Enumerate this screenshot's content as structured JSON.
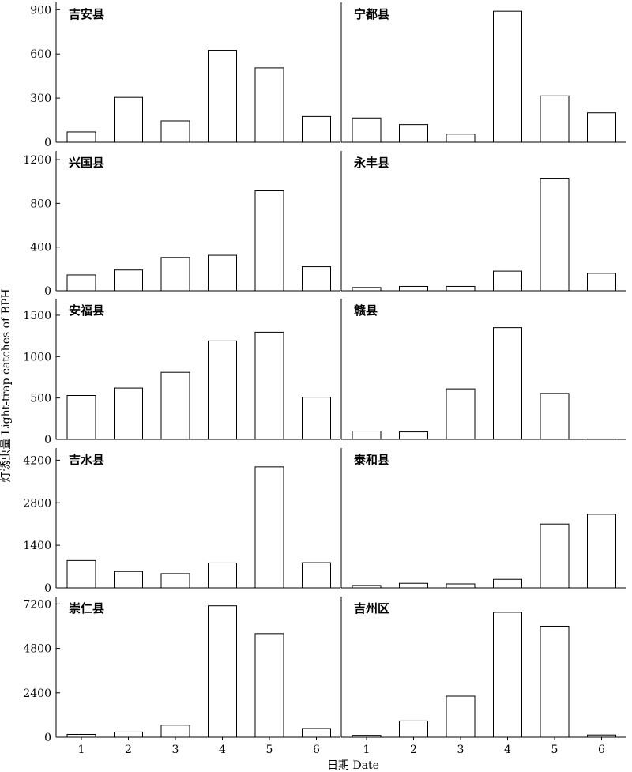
{
  "figure": {
    "ylabel": "灯诱虫量 Light-trap catches of BPH",
    "xlabel": "日期  Date"
  },
  "chart_data": [
    {
      "type": "bar",
      "title": "吉安县",
      "categories": [
        "1",
        "2",
        "3",
        "4",
        "5",
        "6"
      ],
      "values": [
        70,
        305,
        145,
        625,
        505,
        175
      ],
      "ylim": [
        0,
        950
      ],
      "yticks": [
        0,
        300,
        600,
        900
      ]
    },
    {
      "type": "bar",
      "title": "宁都县",
      "categories": [
        "1",
        "2",
        "3",
        "4",
        "5",
        "6"
      ],
      "values": [
        165,
        120,
        55,
        890,
        315,
        200
      ],
      "ylim": [
        0,
        950
      ],
      "yticks": []
    },
    {
      "type": "bar",
      "title": "兴国县",
      "categories": [
        "1",
        "2",
        "3",
        "4",
        "5",
        "6"
      ],
      "values": [
        145,
        190,
        305,
        325,
        915,
        220
      ],
      "ylim": [
        0,
        1280
      ],
      "yticks": [
        0,
        400,
        800,
        1200
      ]
    },
    {
      "type": "bar",
      "title": "永丰县",
      "categories": [
        "1",
        "2",
        "3",
        "4",
        "5",
        "6"
      ],
      "values": [
        30,
        40,
        40,
        180,
        1030,
        160
      ],
      "ylim": [
        0,
        1280
      ],
      "yticks": []
    },
    {
      "type": "bar",
      "title": "安福县",
      "categories": [
        "1",
        "2",
        "3",
        "4",
        "5",
        "6"
      ],
      "values": [
        530,
        620,
        810,
        1190,
        1295,
        510
      ],
      "ylim": [
        0,
        1700
      ],
      "yticks": [
        0,
        500,
        1000,
        1500
      ]
    },
    {
      "type": "bar",
      "title": "赣县",
      "categories": [
        "1",
        "2",
        "3",
        "4",
        "5",
        "6"
      ],
      "values": [
        100,
        90,
        610,
        1350,
        555,
        5
      ],
      "ylim": [
        0,
        1700
      ],
      "yticks": []
    },
    {
      "type": "bar",
      "title": "吉水县",
      "categories": [
        "1",
        "2",
        "3",
        "4",
        "5",
        "6"
      ],
      "values": [
        900,
        540,
        470,
        820,
        3980,
        830
      ],
      "ylim": [
        0,
        4600
      ],
      "yticks": [
        0,
        1400,
        2800,
        4200
      ]
    },
    {
      "type": "bar",
      "title": "泰和县",
      "categories": [
        "1",
        "2",
        "3",
        "4",
        "5",
        "6"
      ],
      "values": [
        80,
        150,
        130,
        280,
        2100,
        2420
      ],
      "ylim": [
        0,
        4600
      ],
      "yticks": []
    },
    {
      "type": "bar",
      "title": "崇仁县",
      "categories": [
        "1",
        "2",
        "3",
        "4",
        "5",
        "6"
      ],
      "values": [
        150,
        280,
        650,
        7100,
        5600,
        470
      ],
      "ylim": [
        0,
        7600
      ],
      "yticks": [
        0,
        2400,
        4800,
        7200
      ]
    },
    {
      "type": "bar",
      "title": "吉州区",
      "categories": [
        "1",
        "2",
        "3",
        "4",
        "5",
        "6"
      ],
      "values": [
        100,
        880,
        2220,
        6750,
        6000,
        120
      ],
      "ylim": [
        0,
        7600
      ],
      "yticks": []
    }
  ]
}
